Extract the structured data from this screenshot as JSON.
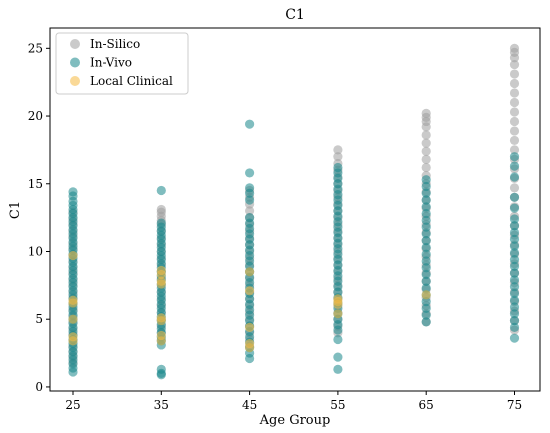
{
  "chart_data": {
    "type": "scatter",
    "title": "C1",
    "xlabel": "Age Group",
    "ylabel": "C1",
    "categories": [
      "25",
      "35",
      "45",
      "55",
      "65",
      "75"
    ],
    "ylim": [
      -0.3,
      26.5
    ],
    "yticks": [
      "0",
      "5",
      "10",
      "15",
      "20",
      "25"
    ],
    "legend_position": "top-left",
    "series": [
      {
        "name": "In-Silico",
        "color": "#9e9e9e",
        "points": {
          "25": [
            1.8,
            2.2,
            2.6,
            3.0,
            3.4,
            3.9,
            4.3,
            4.8,
            5.2,
            5.7,
            6.1,
            6.6,
            7.0,
            7.5,
            7.9,
            8.4,
            8.8,
            9.3,
            9.7,
            10.2,
            10.6,
            11.1,
            11.5,
            12.0,
            12.4,
            12.9
          ],
          "35": [
            3.5,
            4.0,
            4.5,
            5.0,
            5.5,
            6.0,
            6.5,
            7.0,
            7.5,
            8.0,
            8.5,
            9.0,
            9.5,
            10.0,
            10.5,
            11.0,
            11.5,
            12.0,
            12.3,
            12.6,
            12.9,
            13.1
          ],
          "45": [
            3.0,
            3.5,
            4.0,
            4.5,
            5.0,
            5.5,
            6.0,
            6.5,
            7.0,
            7.5,
            8.0,
            8.5,
            9.0,
            9.5,
            10.0,
            10.5,
            11.0,
            11.5,
            12.0,
            12.5,
            13.0,
            13.5,
            14.0,
            14.5
          ],
          "55": [
            4.0,
            4.5,
            5.0,
            5.5,
            6.0,
            6.5,
            7.0,
            7.5,
            8.0,
            8.5,
            9.0,
            9.5,
            10.0,
            10.5,
            11.0,
            11.5,
            12.0,
            12.5,
            13.0,
            13.5,
            14.0,
            14.5,
            15.0,
            15.5,
            16.0,
            16.5,
            17.0,
            17.5
          ],
          "65": [
            4.8,
            5.4,
            6.0,
            6.6,
            7.2,
            7.8,
            8.4,
            9.0,
            9.6,
            10.2,
            10.8,
            11.4,
            12.0,
            12.6,
            13.2,
            13.8,
            14.4,
            15.0,
            15.6,
            16.2,
            16.8,
            17.4,
            18.0,
            18.6,
            19.2,
            19.6,
            19.9,
            20.2
          ],
          "75": [
            4.2,
            4.9,
            5.6,
            6.3,
            7.0,
            7.7,
            8.4,
            9.1,
            9.8,
            10.5,
            11.2,
            11.9,
            12.6,
            13.3,
            14.0,
            14.7,
            15.4,
            16.1,
            16.8,
            17.5,
            18.2,
            18.9,
            19.6,
            20.3,
            21.0,
            21.7,
            22.4,
            23.1,
            23.8,
            24.3,
            24.7,
            25.0
          ]
        }
      },
      {
        "name": "In-Vivo",
        "color": "#17878a",
        "points": {
          "25": [
            1.1,
            1.4,
            1.7,
            2.0,
            2.3,
            2.6,
            2.9,
            3.2,
            3.5,
            3.8,
            4.1,
            4.4,
            4.7,
            5.0,
            5.3,
            5.6,
            5.9,
            6.2,
            6.5,
            6.8,
            7.1,
            7.4,
            7.7,
            8.0,
            8.3,
            8.6,
            8.9,
            9.2,
            9.5,
            9.8,
            10.1,
            10.4,
            10.7,
            11.0,
            11.3,
            11.6,
            11.9,
            12.2,
            12.5,
            12.8,
            13.1,
            13.4,
            13.7,
            14.1,
            14.4
          ],
          "35": [
            0.9,
            1.0,
            1.3,
            3.1,
            3.4,
            3.7,
            4.0,
            4.3,
            4.6,
            4.9,
            5.2,
            5.5,
            5.8,
            6.1,
            6.4,
            6.7,
            7.0,
            7.3,
            7.6,
            7.9,
            8.2,
            8.5,
            8.8,
            9.1,
            9.4,
            9.7,
            10.0,
            10.3,
            10.6,
            10.9,
            11.2,
            11.5,
            11.8,
            12.1,
            14.5
          ],
          "45": [
            2.1,
            2.5,
            2.9,
            3.3,
            3.7,
            4.1,
            4.5,
            4.9,
            5.3,
            5.7,
            6.1,
            6.5,
            6.9,
            7.3,
            7.7,
            8.1,
            8.5,
            8.9,
            9.3,
            9.7,
            10.1,
            10.5,
            10.9,
            11.3,
            11.7,
            12.1,
            12.5,
            13.8,
            14.3,
            14.7,
            15.8,
            19.4
          ],
          "55": [
            1.3,
            2.2,
            3.5,
            4.2,
            4.6,
            5.0,
            5.4,
            5.8,
            6.2,
            6.6,
            7.0,
            7.4,
            7.8,
            8.2,
            8.6,
            9.0,
            9.4,
            9.8,
            10.2,
            10.6,
            11.0,
            11.4,
            11.8,
            12.2,
            12.6,
            13.0,
            13.4,
            13.8,
            14.2,
            14.6,
            15.0,
            15.4,
            15.8,
            16.2
          ],
          "65": [
            4.8,
            5.3,
            5.8,
            6.3,
            6.8,
            7.3,
            7.8,
            8.3,
            8.8,
            9.3,
            9.8,
            10.3,
            10.8,
            11.3,
            11.8,
            12.3,
            12.8,
            13.3,
            13.8,
            14.3,
            14.8,
            15.3
          ],
          "75": [
            3.6,
            4.4,
            4.9,
            5.4,
            5.9,
            6.4,
            6.9,
            7.4,
            7.9,
            8.4,
            8.9,
            9.4,
            9.9,
            10.4,
            10.9,
            11.4,
            11.9,
            12.4,
            13.2,
            14.0,
            15.5,
            16.3,
            17.0
          ]
        }
      },
      {
        "name": "Local Clinical",
        "color": "#f5b942",
        "points": {
          "25": [
            3.4,
            3.7,
            5.0,
            6.2,
            6.4,
            9.7
          ],
          "35": [
            3.4,
            3.8,
            4.9,
            5.1,
            7.6,
            7.8,
            8.3,
            8.6
          ],
          "45": [
            2.9,
            3.2,
            4.4,
            7.1,
            8.5
          ],
          "55": [
            5.4,
            6.1,
            6.3,
            6.5
          ],
          "65": [
            6.8
          ],
          "75": []
        }
      }
    ]
  }
}
